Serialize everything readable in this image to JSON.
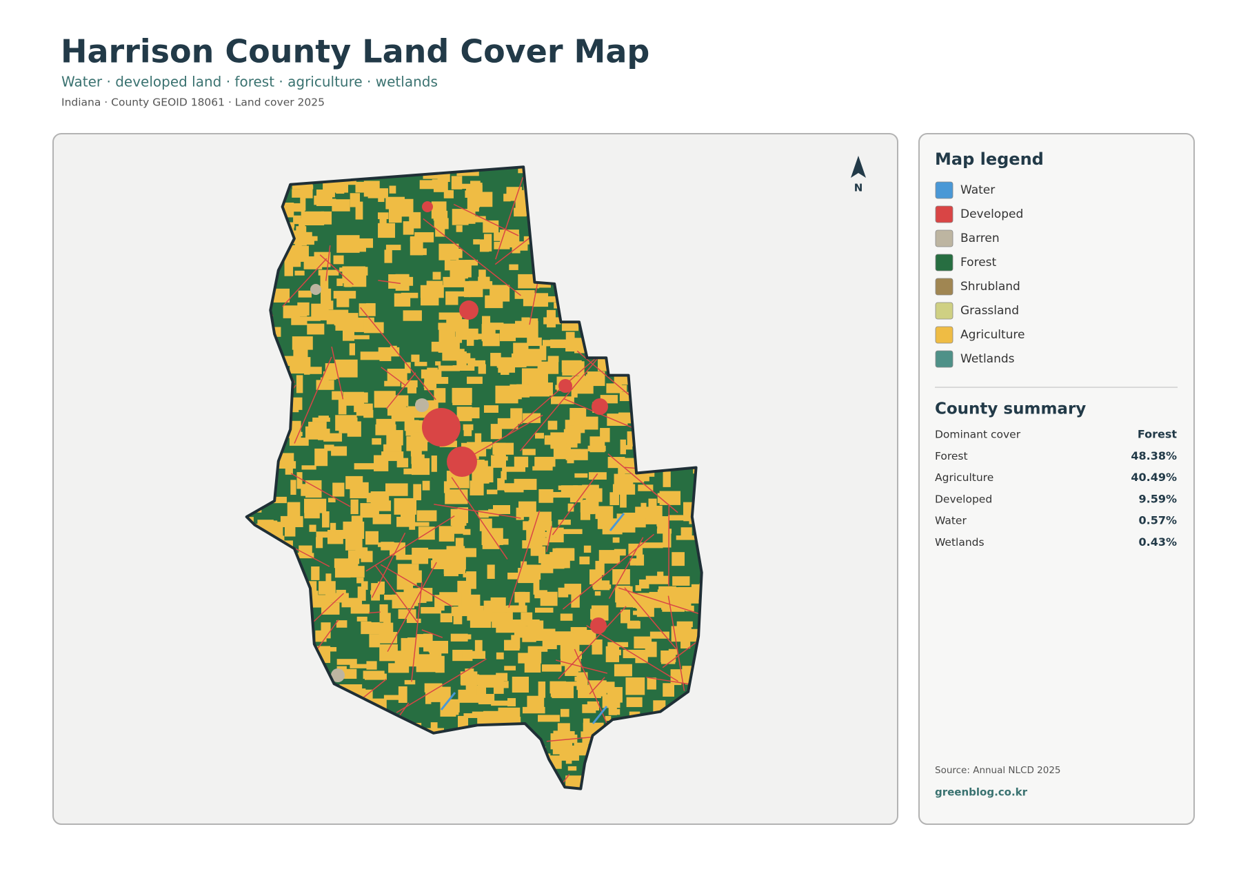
{
  "header": {
    "title": "Harrison County Land Cover Map",
    "subtitle": "Water · developed land · forest · agriculture · wetlands",
    "meta": "Indiana · County GEOID 18061 · Land cover 2025"
  },
  "map": {
    "north_label": "N"
  },
  "legend": {
    "title": "Map legend",
    "items": [
      {
        "label": "Water",
        "color": "#4a98d6"
      },
      {
        "label": "Developed",
        "color": "#d94545"
      },
      {
        "label": "Barren",
        "color": "#bdb5a1"
      },
      {
        "label": "Forest",
        "color": "#276e41"
      },
      {
        "label": "Shrubland",
        "color": "#a08652"
      },
      {
        "label": "Grassland",
        "color": "#cfd083"
      },
      {
        "label": "Agriculture",
        "color": "#efbc44"
      },
      {
        "label": "Wetlands",
        "color": "#4f9188"
      }
    ]
  },
  "summary": {
    "title": "County summary",
    "rows": [
      [
        "Dominant cover",
        "Forest"
      ],
      [
        "Forest",
        "48.38%"
      ],
      [
        "Agriculture",
        "40.49%"
      ],
      [
        "Developed",
        "9.59%"
      ],
      [
        "Water",
        "0.57%"
      ],
      [
        "Wetlands",
        "0.43%"
      ]
    ]
  },
  "footer": {
    "source": "Source: Annual NLCD 2025",
    "site": "greenblog.co.kr"
  }
}
